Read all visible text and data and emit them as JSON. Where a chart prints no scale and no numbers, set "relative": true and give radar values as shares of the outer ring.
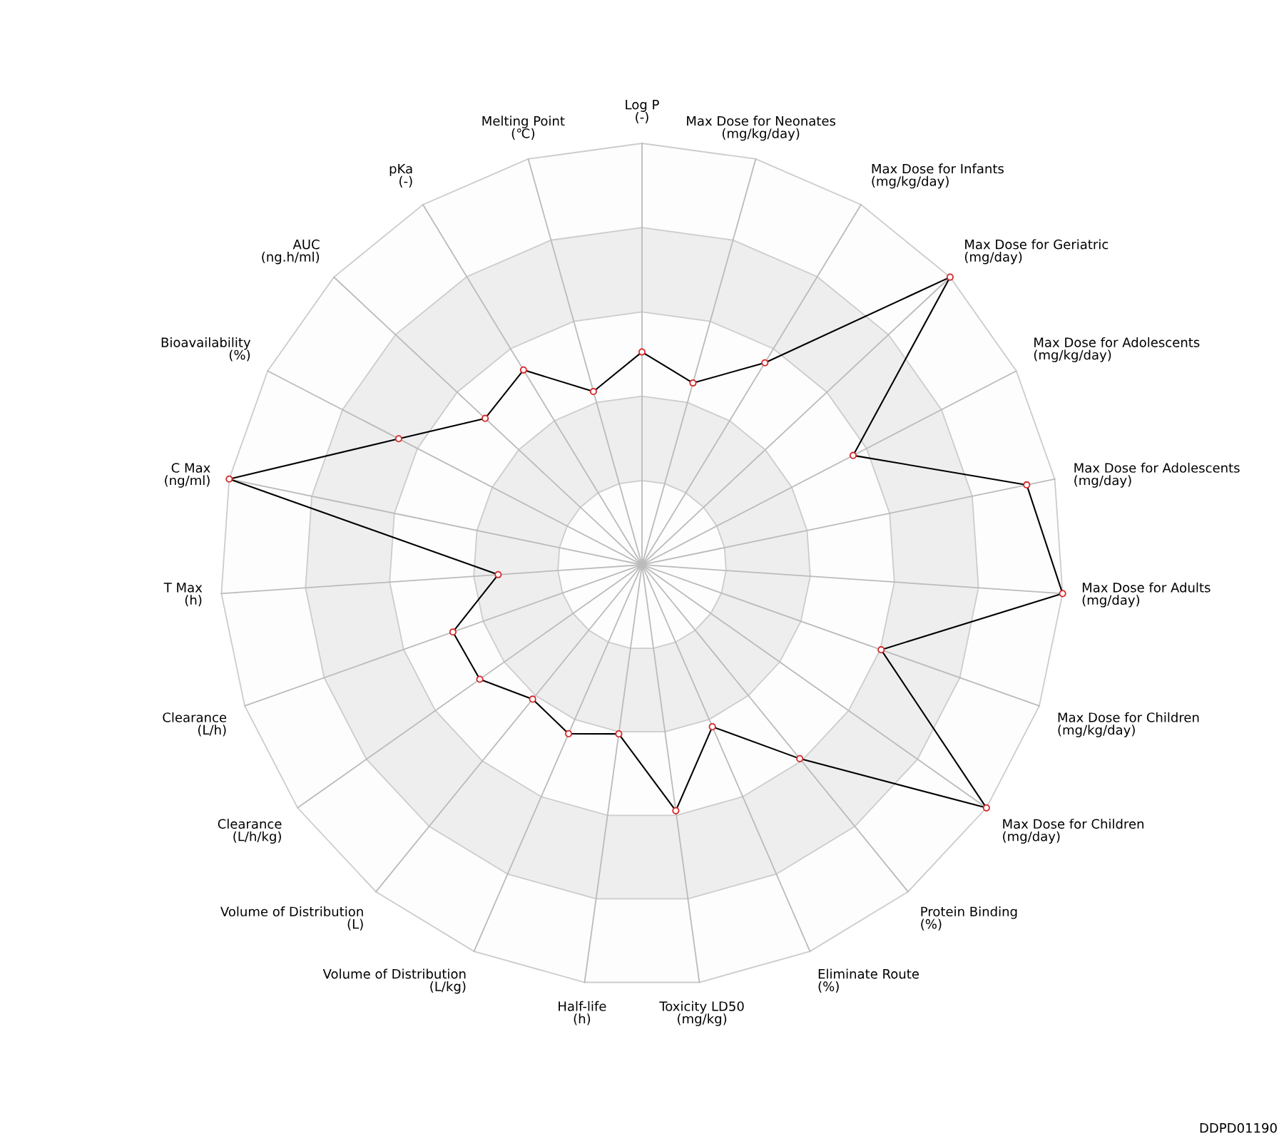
{
  "chart_data": {
    "type": "radar",
    "relative": true,
    "grid": true,
    "marker": "circle",
    "categories": [
      "Log P\n(-)",
      "Max Dose for Neonates\n(mg/kg/day)",
      "Max Dose for Infants\n(mg/kg/day)",
      "Max Dose for Geriatric\n(mg/day)",
      "Max Dose for Adolescents\n(mg/kg/day)",
      "Max Dose for Adolescents\n(mg/day)",
      "Max Dose for Adults\n(mg/day)",
      "Max Dose for Children\n(mg/kg/day)",
      "Max Dose for Children\n(mg/day)",
      "Protein Binding\n(%)",
      "Eliminate Route\n(%)",
      "Toxicity LD50\n(mg/kg)",
      "Half-life\n(h)",
      "Volume of Distribution\n(L/kg)",
      "Volume of Distribution\n(L)",
      "Clearance\n(L/h/kg)",
      "Clearance\n(L/h)",
      "T Max\n(h)",
      "C Max\n(ng/ml)",
      "Bioavailability\n(%)",
      "AUC\n(ng.h/ml)",
      "pKa\n(-)",
      "Melting Point\n(℃)"
    ],
    "series": [
      {
        "color": "#000000",
        "values": [
          0.505,
          0.448,
          0.561,
          1.0,
          0.564,
          0.932,
          1.0,
          0.602,
          1.0,
          0.593,
          0.419,
          0.589,
          0.405,
          0.437,
          0.411,
          0.471,
          0.476,
          0.342,
          1.0,
          0.65,
          0.509,
          0.541,
          0.427
        ]
      }
    ],
    "annotations": [
      "DDPD01190"
    ]
  }
}
